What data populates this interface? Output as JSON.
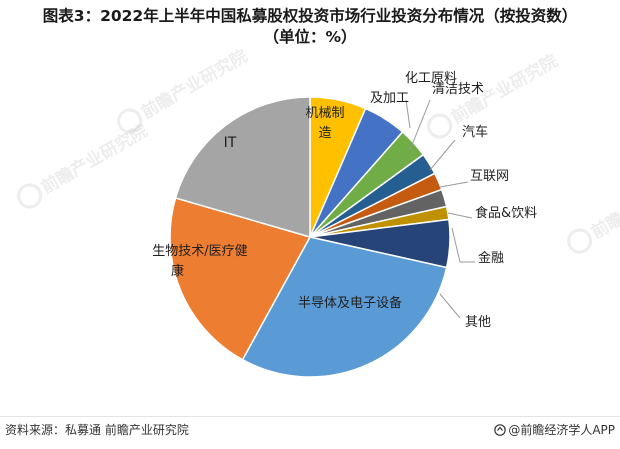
{
  "title_line1": "图表3：2022年上半年中国私募股权投资市场行业投资分布情况（按投资数）",
  "title_line2": "（单位：%）",
  "footer": {
    "source": "资料来源：私募通 前瞻产业研究院",
    "brand": "@前瞻经济学人APP"
  },
  "watermark": "前瞻产业研究院",
  "chart_data": {
    "type": "pie",
    "title": "图表3：2022年上半年中国私募股权投资市场行业投资分布情况（按投资数）（单位：%）",
    "unit": "%",
    "start_angle_deg": 90,
    "direction": "clockwise",
    "slices": [
      {
        "label": "机械制造",
        "value": 6.5,
        "color": "#FFC000"
      },
      {
        "label": "化工原料及加工",
        "value": 5.0,
        "color": "#4472C4"
      },
      {
        "label": "清洁技术",
        "value": 3.5,
        "color": "#70AD47"
      },
      {
        "label": "汽车",
        "value": 2.5,
        "color": "#255E91"
      },
      {
        "label": "互联网",
        "value": 2.0,
        "color": "#C55A11"
      },
      {
        "label": "食品&饮料",
        "value": 2.0,
        "color": "#636363"
      },
      {
        "label": "金融",
        "value": 1.5,
        "color": "#BF9000"
      },
      {
        "label": "其他",
        "value": 5.5,
        "color": "#264478"
      },
      {
        "label": "半导体及电子设备",
        "value": 29.5,
        "color": "#5B9BD5"
      },
      {
        "label": "生物技术/医疗健康",
        "value": 21.5,
        "color": "#ED7D31"
      },
      {
        "label": "IT",
        "value": 20.5,
        "color": "#A5A5A5"
      }
    ],
    "label_lines": [
      [
        "机械制",
        "造"
      ],
      [
        "化工原料",
        "及加工"
      ],
      [
        "清洁技术"
      ],
      [
        "汽车"
      ],
      [
        "互联网"
      ],
      [
        "食品&饮料"
      ],
      [
        "金融"
      ],
      [
        "其他"
      ],
      [
        "半导体及电子设备"
      ],
      [
        "生物技术/医疗健",
        "康"
      ],
      [
        "IT"
      ]
    ]
  }
}
